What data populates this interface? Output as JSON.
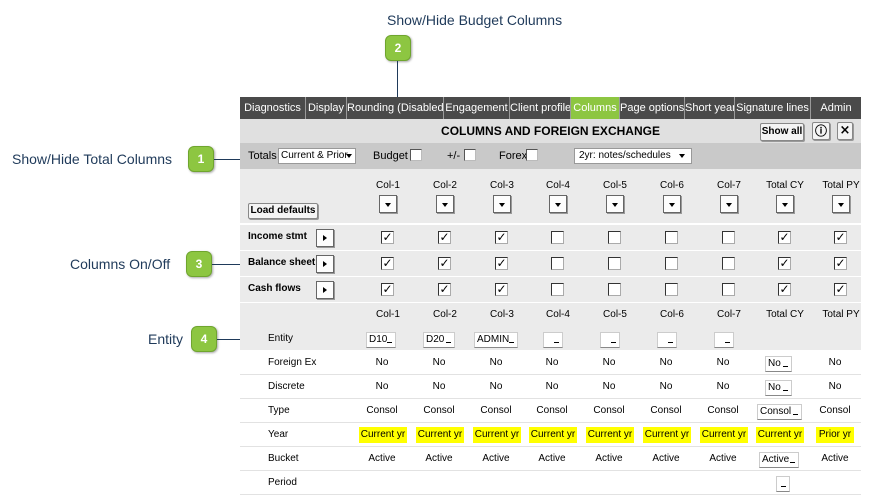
{
  "callouts": [
    {
      "num": "1",
      "label": "Show/Hide Total Columns"
    },
    {
      "num": "2",
      "label": "Show/Hide Budget Columns"
    },
    {
      "num": "3",
      "label": "Columns On/Off"
    },
    {
      "num": "4",
      "label": "Entity"
    }
  ],
  "tabs": [
    {
      "label": "Diagnostics",
      "active": false
    },
    {
      "label": "Display",
      "active": false
    },
    {
      "label": "Rounding (Disabled)",
      "active": false
    },
    {
      "label": "Engagement",
      "active": false
    },
    {
      "label": "Client profile",
      "active": false
    },
    {
      "label": "Columns",
      "active": true
    },
    {
      "label": "Page options",
      "active": false
    },
    {
      "label": "Short year",
      "active": false
    },
    {
      "label": "Signature lines",
      "active": false
    },
    {
      "label": "Admin",
      "active": false
    }
  ],
  "title": "COLUMNS AND FOREIGN EXCHANGE",
  "show_all_label": "Show all",
  "info_icon": "ⓘ",
  "close_icon": "×",
  "totals": {
    "totals_label": "Totals",
    "totals_value": "Current & Prior",
    "budget_label": "Budget",
    "plusminus_label": "+/-",
    "forex_label": "Forex",
    "notes_value": "2yr: notes/schedules"
  },
  "load_defaults_label": "Load defaults",
  "columns": [
    "Col-1",
    "Col-2",
    "Col-3",
    "Col-4",
    "Col-5",
    "Col-6",
    "Col-7",
    "Total CY",
    "Total PY"
  ],
  "statements": [
    {
      "label": "Income stmt",
      "checks": [
        true,
        true,
        true,
        false,
        false,
        false,
        false,
        true,
        true
      ]
    },
    {
      "label": "Balance sheet",
      "checks": [
        true,
        true,
        true,
        false,
        false,
        false,
        false,
        true,
        true
      ]
    },
    {
      "label": "Cash flows",
      "checks": [
        true,
        true,
        true,
        false,
        false,
        false,
        false,
        true,
        true
      ]
    }
  ],
  "entity_rows": {
    "entity": {
      "label": "Entity",
      "values": [
        "D10",
        "D20",
        "ADMIN",
        "",
        "",
        "",
        ""
      ]
    },
    "foreign_ex": {
      "label": "Foreign Ex",
      "values": [
        "No",
        "No",
        "No",
        "No",
        "No",
        "No",
        "No",
        "No",
        "No"
      ]
    },
    "discrete": {
      "label": "Discrete",
      "values": [
        "No",
        "No",
        "No",
        "No",
        "No",
        "No",
        "No",
        "No",
        "No"
      ]
    },
    "type": {
      "label": "Type",
      "values": [
        "Consol",
        "Consol",
        "Consol",
        "Consol",
        "Consol",
        "Consol",
        "Consol",
        "Consol",
        "Consol"
      ]
    },
    "year": {
      "label": "Year",
      "values": [
        "Current yr",
        "Current yr",
        "Current yr",
        "Current yr",
        "Current yr",
        "Current yr",
        "Current yr",
        "Current yr",
        "Prior yr"
      ]
    },
    "bucket": {
      "label": "Bucket",
      "values": [
        "Active",
        "Active",
        "Active",
        "Active",
        "Active",
        "Active",
        "Active",
        "Active",
        "Active"
      ]
    },
    "period": {
      "label": "Period",
      "values": [
        "",
        "",
        "",
        "",
        "",
        "",
        "",
        "",
        ""
      ]
    }
  },
  "colors": {
    "accent": "#8dc641",
    "tab_bg": "#4a4a4a",
    "highlight": "#ffff00",
    "callout_text": "#1f3a5a"
  }
}
